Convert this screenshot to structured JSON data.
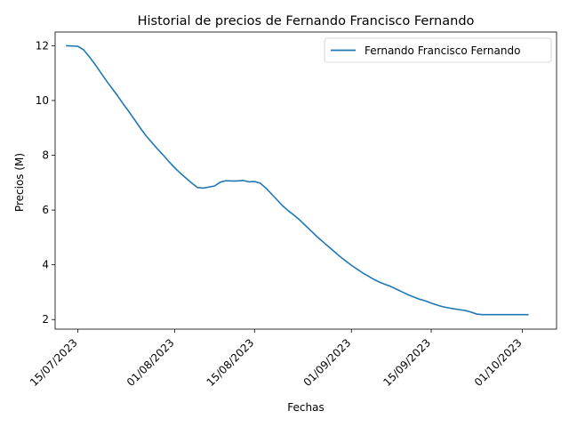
{
  "chart_data": {
    "type": "line",
    "title": "Historial de precios de Fernando Francisco Fernando",
    "xlabel": "Fechas",
    "ylabel": "Precios (M)",
    "x_ticks": [
      "2023-07-15",
      "2023-08-01",
      "2023-08-15",
      "2023-09-01",
      "2023-09-15",
      "2023-10-01"
    ],
    "x_tick_labels": [
      "15/07/2023",
      "01/08/2023",
      "15/08/2023",
      "01/09/2023",
      "15/09/2023",
      "01/10/2023"
    ],
    "y_ticks": [
      2,
      4,
      6,
      8,
      10,
      12
    ],
    "y_tick_labels": [
      "2",
      "4",
      "6",
      "8",
      "10",
      "12"
    ],
    "xlim": [
      "2023-07-11",
      "2023-10-07"
    ],
    "ylim": [
      1.65,
      12.5
    ],
    "grid": false,
    "legend_position": "top-right",
    "series": [
      {
        "name": "Fernando Francisco Fernando",
        "color": "#1f77b4",
        "x": [
          "2023-07-13",
          "2023-07-15",
          "2023-07-16",
          "2023-07-17",
          "2023-07-18",
          "2023-07-19",
          "2023-07-20",
          "2023-07-21",
          "2023-07-22",
          "2023-07-23",
          "2023-07-24",
          "2023-07-25",
          "2023-07-26",
          "2023-07-27",
          "2023-07-28",
          "2023-07-29",
          "2023-07-30",
          "2023-07-31",
          "2023-08-01",
          "2023-08-02",
          "2023-08-03",
          "2023-08-04",
          "2023-08-05",
          "2023-08-06",
          "2023-08-07",
          "2023-08-08",
          "2023-08-09",
          "2023-08-10",
          "2023-08-11",
          "2023-08-12",
          "2023-08-13",
          "2023-08-14",
          "2023-08-15",
          "2023-08-16",
          "2023-08-17",
          "2023-08-18",
          "2023-08-19",
          "2023-08-20",
          "2023-08-21",
          "2023-08-22",
          "2023-08-23",
          "2023-08-24",
          "2023-08-25",
          "2023-08-26",
          "2023-08-27",
          "2023-08-28",
          "2023-08-29",
          "2023-08-30",
          "2023-08-31",
          "2023-09-01",
          "2023-09-02",
          "2023-09-03",
          "2023-09-04",
          "2023-09-05",
          "2023-09-06",
          "2023-09-07",
          "2023-09-08",
          "2023-09-09",
          "2023-09-10",
          "2023-09-11",
          "2023-09-12",
          "2023-09-13",
          "2023-09-14",
          "2023-09-15",
          "2023-09-16",
          "2023-09-17",
          "2023-09-18",
          "2023-09-19",
          "2023-09-20",
          "2023-09-21",
          "2023-09-22",
          "2023-09-23",
          "2023-09-24",
          "2023-09-25",
          "2023-09-26",
          "2023-09-27",
          "2023-09-28",
          "2023-09-29",
          "2023-09-30",
          "2023-10-01",
          "2023-10-02"
        ],
        "y": [
          12.0,
          11.98,
          11.85,
          11.6,
          11.32,
          11.02,
          10.72,
          10.44,
          10.16,
          9.86,
          9.58,
          9.28,
          8.98,
          8.7,
          8.46,
          8.22,
          8.0,
          7.76,
          7.54,
          7.34,
          7.16,
          6.98,
          6.82,
          6.8,
          6.84,
          6.88,
          7.02,
          7.07,
          7.06,
          7.06,
          7.08,
          7.03,
          7.04,
          6.98,
          6.8,
          6.58,
          6.36,
          6.14,
          5.96,
          5.8,
          5.62,
          5.42,
          5.22,
          5.02,
          4.84,
          4.66,
          4.48,
          4.3,
          4.14,
          3.98,
          3.84,
          3.7,
          3.58,
          3.46,
          3.36,
          3.28,
          3.2,
          3.1,
          3.0,
          2.9,
          2.82,
          2.74,
          2.68,
          2.6,
          2.53,
          2.47,
          2.43,
          2.39,
          2.36,
          2.33,
          2.27,
          2.2,
          2.18,
          2.18,
          2.18,
          2.18,
          2.18,
          2.18,
          2.18,
          2.18,
          2.18
        ]
      }
    ]
  }
}
